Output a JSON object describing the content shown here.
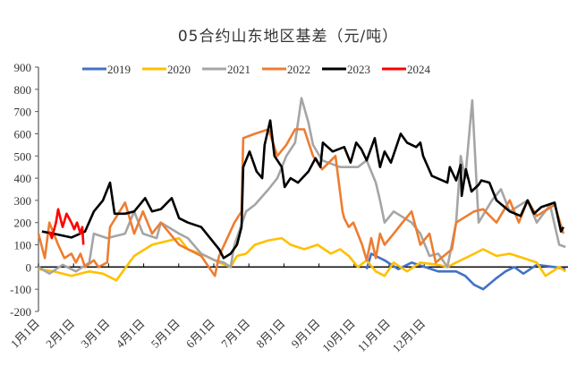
{
  "chart_data": {
    "type": "line",
    "title": "05合约山东地区基差（元/吨）",
    "xlabel": "",
    "ylabel": "",
    "ylim": [
      -200,
      900
    ],
    "yticks": [
      900,
      800,
      700,
      600,
      500,
      400,
      300,
      200,
      100,
      0,
      -100,
      -200
    ],
    "ytick_labels": [
      "900",
      "800",
      "700",
      "600",
      "500",
      "400",
      "300",
      "200",
      "100",
      "0",
      "-100",
      "-200"
    ],
    "x_tick_labels": [
      "1月1日",
      "2月1日",
      "3月1日",
      "4月1日",
      "5月1日",
      "6月1日",
      "7月1日",
      "8月1日",
      "9月1日",
      "10月1日",
      "11月1日",
      "12月1日"
    ],
    "x_note_units": "x given in months from 1月1日 along the axis",
    "xlim": [
      0,
      15.1
    ],
    "legend_position": "top",
    "grid": false,
    "series": [
      {
        "name": "2019",
        "color": "#4472C4",
        "points": [
          [
            9.36,
            -10
          ],
          [
            9.49,
            60
          ],
          [
            9.87,
            30
          ],
          [
            10.26,
            -10
          ],
          [
            10.64,
            20
          ],
          [
            11.02,
            0
          ],
          [
            11.4,
            -20
          ],
          [
            11.91,
            -20
          ],
          [
            12.17,
            -40
          ],
          [
            12.42,
            -80
          ],
          [
            12.68,
            -100
          ],
          [
            13.06,
            -50
          ],
          [
            13.32,
            -20
          ],
          [
            13.57,
            0
          ],
          [
            13.83,
            -30
          ],
          [
            14.21,
            10
          ],
          [
            14.72,
            0
          ],
          [
            15.03,
            -10
          ]
        ]
      },
      {
        "name": "2020",
        "color": "#FFC000",
        "points": [
          [
            0,
            -10
          ],
          [
            0.43,
            -20
          ],
          [
            0.94,
            -40
          ],
          [
            1.45,
            -20
          ],
          [
            1.84,
            -30
          ],
          [
            2.22,
            -60
          ],
          [
            2.73,
            50
          ],
          [
            3.24,
            100
          ],
          [
            3.75,
            120
          ],
          [
            4.01,
            130
          ],
          [
            4.26,
            80
          ],
          [
            4.77,
            50
          ],
          [
            5.15,
            20
          ],
          [
            5.48,
            0
          ],
          [
            5.66,
            50
          ],
          [
            5.92,
            60
          ],
          [
            6.17,
            100
          ],
          [
            6.56,
            120
          ],
          [
            6.94,
            130
          ],
          [
            7.19,
            100
          ],
          [
            7.58,
            80
          ],
          [
            7.96,
            100
          ],
          [
            8.34,
            60
          ],
          [
            8.6,
            80
          ],
          [
            8.85,
            50
          ],
          [
            9.11,
            0
          ],
          [
            9.36,
            30
          ],
          [
            9.62,
            -20
          ],
          [
            9.87,
            -40
          ],
          [
            10.13,
            20
          ],
          [
            10.51,
            -20
          ],
          [
            10.89,
            20
          ],
          [
            11.4,
            10
          ],
          [
            11.66,
            0
          ],
          [
            11.91,
            20
          ],
          [
            12.3,
            50
          ],
          [
            12.68,
            80
          ],
          [
            13.06,
            50
          ],
          [
            13.44,
            60
          ],
          [
            13.83,
            40
          ],
          [
            14.21,
            20
          ],
          [
            14.46,
            -40
          ],
          [
            14.85,
            0
          ],
          [
            15.03,
            -20
          ]
        ]
      },
      {
        "name": "2021",
        "color": "#A5A5A5",
        "points": [
          [
            0,
            0
          ],
          [
            0.31,
            -30
          ],
          [
            0.69,
            10
          ],
          [
            1.07,
            -20
          ],
          [
            1.45,
            20
          ],
          [
            1.58,
            150
          ],
          [
            1.96,
            130
          ],
          [
            2.47,
            150
          ],
          [
            2.73,
            250
          ],
          [
            2.98,
            150
          ],
          [
            3.37,
            130
          ],
          [
            3.49,
            200
          ],
          [
            4.01,
            150
          ],
          [
            4.26,
            130
          ],
          [
            4.64,
            60
          ],
          [
            5.03,
            30
          ],
          [
            5.28,
            20
          ],
          [
            5.48,
            0
          ],
          [
            5.59,
            100
          ],
          [
            5.92,
            250
          ],
          [
            6.17,
            280
          ],
          [
            6.56,
            350
          ],
          [
            6.81,
            400
          ],
          [
            7.07,
            500
          ],
          [
            7.32,
            560
          ],
          [
            7.5,
            760
          ],
          [
            7.7,
            650
          ],
          [
            7.83,
            550
          ],
          [
            8.09,
            480
          ],
          [
            8.6,
            450
          ],
          [
            9.11,
            450
          ],
          [
            9.36,
            480
          ],
          [
            9.62,
            380
          ],
          [
            9.74,
            300
          ],
          [
            9.87,
            200
          ],
          [
            10.13,
            250
          ],
          [
            10.64,
            200
          ],
          [
            10.89,
            150
          ],
          [
            11.15,
            50
          ],
          [
            11.4,
            60
          ],
          [
            11.66,
            0
          ],
          [
            11.91,
            200
          ],
          [
            12.04,
            500
          ],
          [
            12.17,
            400
          ],
          [
            12.37,
            750
          ],
          [
            12.55,
            200
          ],
          [
            12.93,
            300
          ],
          [
            13.19,
            350
          ],
          [
            13.44,
            250
          ],
          [
            13.95,
            300
          ],
          [
            14.21,
            200
          ],
          [
            14.59,
            280
          ],
          [
            14.85,
            100
          ],
          [
            15.03,
            90
          ]
        ]
      },
      {
        "name": "2022",
        "color": "#ED7D31",
        "points": [
          [
            0,
            150
          ],
          [
            0.18,
            40
          ],
          [
            0.31,
            200
          ],
          [
            0.56,
            100
          ],
          [
            0.74,
            40
          ],
          [
            0.94,
            60
          ],
          [
            1.07,
            20
          ],
          [
            1.2,
            60
          ],
          [
            1.33,
            0
          ],
          [
            1.58,
            30
          ],
          [
            1.71,
            0
          ],
          [
            1.96,
            20
          ],
          [
            2.04,
            180
          ],
          [
            2.47,
            290
          ],
          [
            2.73,
            150
          ],
          [
            2.98,
            250
          ],
          [
            3.24,
            150
          ],
          [
            3.49,
            200
          ],
          [
            3.75,
            150
          ],
          [
            4.01,
            100
          ],
          [
            4.26,
            80
          ],
          [
            4.64,
            50
          ],
          [
            5.03,
            -40
          ],
          [
            5.15,
            50
          ],
          [
            5.59,
            200
          ],
          [
            5.79,
            250
          ],
          [
            5.84,
            580
          ],
          [
            6.17,
            600
          ],
          [
            6.56,
            620
          ],
          [
            6.81,
            500
          ],
          [
            7.07,
            550
          ],
          [
            7.32,
            620
          ],
          [
            7.58,
            620
          ],
          [
            7.83,
            500
          ],
          [
            8.09,
            440
          ],
          [
            8.47,
            500
          ],
          [
            8.67,
            250
          ],
          [
            8.72,
            220
          ],
          [
            8.85,
            180
          ],
          [
            8.98,
            200
          ],
          [
            9.23,
            100
          ],
          [
            9.36,
            30
          ],
          [
            9.49,
            130
          ],
          [
            9.62,
            40
          ],
          [
            9.74,
            150
          ],
          [
            9.87,
            100
          ],
          [
            10.13,
            150
          ],
          [
            10.38,
            200
          ],
          [
            10.64,
            250
          ],
          [
            10.89,
            100
          ],
          [
            11.15,
            150
          ],
          [
            11.33,
            20
          ],
          [
            11.79,
            80
          ],
          [
            11.91,
            200
          ],
          [
            12.42,
            250
          ],
          [
            12.68,
            260
          ],
          [
            13.06,
            200
          ],
          [
            13.44,
            300
          ],
          [
            13.7,
            200
          ],
          [
            13.95,
            300
          ],
          [
            14.21,
            230
          ],
          [
            14.72,
            280
          ],
          [
            14.97,
            150
          ]
        ]
      },
      {
        "name": "2023",
        "color": "#000000",
        "points": [
          [
            0.1,
            160
          ],
          [
            0.43,
            150
          ],
          [
            0.94,
            133
          ],
          [
            1.33,
            160
          ],
          [
            1.58,
            250
          ],
          [
            1.84,
            300
          ],
          [
            2.04,
            380
          ],
          [
            2.17,
            240
          ],
          [
            2.47,
            240
          ],
          [
            2.73,
            250
          ],
          [
            3.04,
            310
          ],
          [
            3.24,
            250
          ],
          [
            3.49,
            260
          ],
          [
            3.8,
            310
          ],
          [
            4.01,
            220
          ],
          [
            4.26,
            200
          ],
          [
            4.64,
            180
          ],
          [
            5.15,
            80
          ],
          [
            5.28,
            40
          ],
          [
            5.48,
            60
          ],
          [
            5.66,
            100
          ],
          [
            5.79,
            180
          ],
          [
            5.84,
            450
          ],
          [
            6.02,
            520
          ],
          [
            6.22,
            430
          ],
          [
            6.38,
            400
          ],
          [
            6.45,
            550
          ],
          [
            6.61,
            660
          ],
          [
            6.73,
            500
          ],
          [
            6.94,
            450
          ],
          [
            7.02,
            360
          ],
          [
            7.19,
            400
          ],
          [
            7.4,
            380
          ],
          [
            7.7,
            430
          ],
          [
            7.9,
            490
          ],
          [
            8.04,
            450
          ],
          [
            8.11,
            560
          ],
          [
            8.39,
            520
          ],
          [
            8.72,
            540
          ],
          [
            8.9,
            470
          ],
          [
            9.06,
            560
          ],
          [
            9.21,
            530
          ],
          [
            9.36,
            480
          ],
          [
            9.59,
            580
          ],
          [
            9.74,
            450
          ],
          [
            9.87,
            520
          ],
          [
            10.05,
            470
          ],
          [
            10.33,
            600
          ],
          [
            10.51,
            560
          ],
          [
            10.77,
            540
          ],
          [
            10.89,
            560
          ],
          [
            10.97,
            500
          ],
          [
            11.22,
            410
          ],
          [
            11.66,
            380
          ],
          [
            11.73,
            450
          ],
          [
            11.91,
            390
          ],
          [
            12.04,
            460
          ],
          [
            12.07,
            320
          ],
          [
            12.19,
            440
          ],
          [
            12.35,
            340
          ],
          [
            12.55,
            370
          ],
          [
            12.63,
            390
          ],
          [
            12.86,
            380
          ],
          [
            13.06,
            300
          ],
          [
            13.44,
            250
          ],
          [
            13.75,
            230
          ],
          [
            13.95,
            300
          ],
          [
            14.13,
            240
          ],
          [
            14.34,
            270
          ],
          [
            14.72,
            290
          ],
          [
            14.9,
            160
          ],
          [
            14.97,
            180
          ]
        ]
      },
      {
        "name": "2024",
        "color": "#FF0000",
        "points": [
          [
            0.31,
            160
          ],
          [
            0.38,
            130
          ],
          [
            0.5,
            200
          ],
          [
            0.56,
            260
          ],
          [
            0.69,
            180
          ],
          [
            0.8,
            240
          ],
          [
            0.94,
            200
          ],
          [
            1.02,
            170
          ],
          [
            1.1,
            200
          ],
          [
            1.2,
            150
          ],
          [
            1.25,
            180
          ],
          [
            1.28,
            100
          ]
        ]
      }
    ]
  }
}
